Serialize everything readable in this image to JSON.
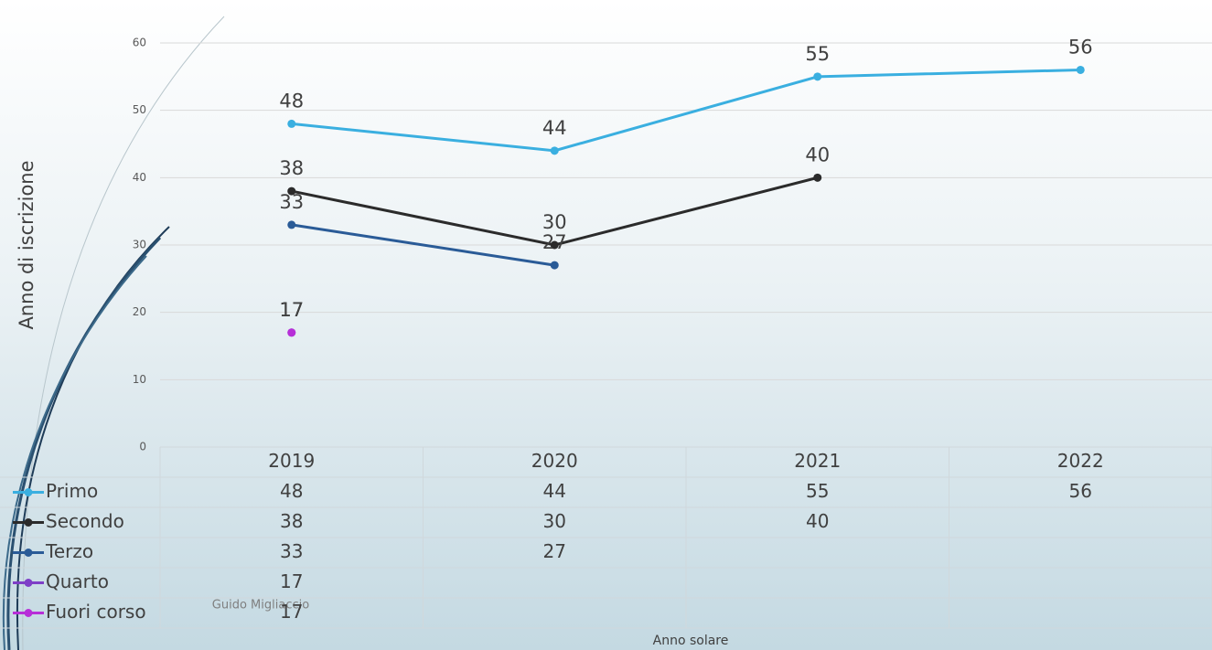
{
  "chart_data": {
    "type": "line",
    "categories": [
      "2019",
      "2020",
      "2021",
      "2022"
    ],
    "series": [
      {
        "name": "Primo",
        "color": "#3aafe0",
        "values": [
          48,
          44,
          55,
          56
        ]
      },
      {
        "name": "Secondo",
        "color": "#2b2b2b",
        "values": [
          38,
          30,
          40,
          null
        ]
      },
      {
        "name": "Terzo",
        "color": "#2a5b97",
        "values": [
          33,
          27,
          null,
          null
        ]
      },
      {
        "name": "Quarto",
        "color": "#7e3fc7",
        "values": [
          17,
          null,
          null,
          null
        ]
      },
      {
        "name": "Fuori corso",
        "color": "#b72fd8",
        "values": [
          17,
          null,
          null,
          null
        ]
      }
    ],
    "ylim": [
      0,
      60
    ],
    "yticks": [
      0,
      10,
      20,
      30,
      40,
      50,
      60
    ],
    "grid": true,
    "ylabel": "Anno di iscrizione",
    "xlabel": "Anno solare",
    "footer": "Guido Migliaccio"
  }
}
